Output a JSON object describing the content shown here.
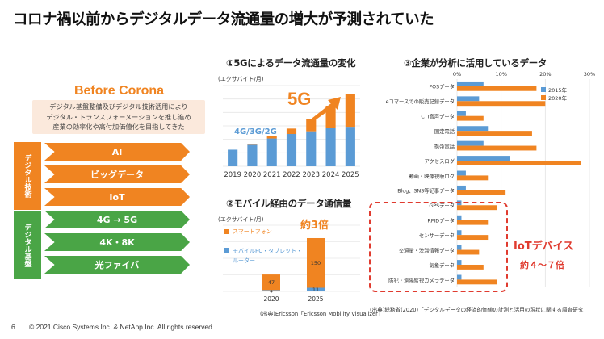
{
  "title": "コロナ禍以前からデジタルデータ流通量の増大が予測されていた",
  "left": {
    "heading": "Before Corona",
    "description": [
      "デジタル基盤整備及びデジタル技術活用により",
      "デジタル・トランスフォーメーションを推し進め",
      "産業の効率化や高付加価値化を目指してきた"
    ],
    "groups": [
      {
        "label": "デジタル技術",
        "color": "#f08421",
        "items": [
          "AI",
          "ビッグデータ",
          "IoT"
        ]
      },
      {
        "label": "デジタル基盤",
        "color": "#4aa546",
        "items": [
          "4G → 5G",
          "4K・8K",
          "光ファイバ"
        ]
      }
    ]
  },
  "chart1": {
    "heading": "①5Gによるデータ流通量の変化",
    "unit": "(エクサバイト/月)",
    "label_4g": "4G/3G/2G",
    "label_5g": "5G"
  },
  "chart2": {
    "heading": "②モバイル経由のデータ通信量",
    "unit": "(エクサバイト/月)",
    "legend": [
      "スマートフォン",
      "モバイルPC・タブレット・ルーター"
    ],
    "legend_lines": [
      "スマートフォン",
      "モバイルPC・タブレット・",
      "ルーター"
    ],
    "callout": "約3倍",
    "source": "(出典)Ericsson「Ericsson Mobility Visualizer」"
  },
  "chart3": {
    "heading": "③企業が分析に活用しているデータ",
    "iot_label": "IoTデバイス",
    "iot_sub": "約４～７倍",
    "source": "(出典)総務省(2020)「デジタルデータの経済的価値の計測と活用の現状に関する調査研究」"
  },
  "footer": {
    "page": "6",
    "copyright": "© 2021 Cisco Systems Inc. & NetApp Inc. All rights reserved"
  },
  "chart_data": [
    {
      "type": "bar",
      "stacked": true,
      "title": "①5Gによるデータ流通量の変化",
      "ylabel": "(エクサバイト/月)",
      "categories": [
        "2019",
        "2020",
        "2021",
        "2022",
        "2023",
        "2024",
        "2025"
      ],
      "series": [
        {
          "name": "4G/3G/2G",
          "color": "#5b9bd5",
          "values": [
            37,
            48,
            62,
            72,
            78,
            85,
            88
          ]
        },
        {
          "name": "5G",
          "color": "#f08421",
          "values": [
            0,
            1,
            5,
            12,
            28,
            50,
            74
          ]
        }
      ],
      "ylim": [
        0,
        180
      ],
      "grid": true
    },
    {
      "type": "bar",
      "stacked": true,
      "title": "②モバイル経由のデータ通信量",
      "ylabel": "(エクサバイト/月)",
      "categories": [
        "2020",
        "2025"
      ],
      "series": [
        {
          "name": "モバイルPC・タブレット・ルーター",
          "color": "#5b9bd5",
          "values": [
            4,
            11
          ]
        },
        {
          "name": "スマートフォン",
          "color": "#f08421",
          "values": [
            47,
            150
          ]
        }
      ],
      "ylim": [
        0,
        200
      ],
      "grid": true,
      "legend": "top-left"
    },
    {
      "type": "bar",
      "orientation": "horizontal",
      "title": "③企業が分析に活用しているデータ",
      "x_ticks": [
        "0%",
        "10%",
        "20%",
        "30%"
      ],
      "xlim": [
        0,
        30
      ],
      "legend": "top-right",
      "categories": [
        "POSデータ",
        "eコマースでの販売記録データ",
        "CTI音声データ",
        "固定電話",
        "携帯電話",
        "アクセスログ",
        "動画・映像視聴ログ",
        "Blog、SNS等記事データ",
        "GPSデータ",
        "RFIDデータ",
        "センサーデータ",
        "交通量・渋滞情報データ",
        "気象データ",
        "防犯・遠隔監視カメラデータ"
      ],
      "series": [
        {
          "name": "2015年",
          "color": "#5b9bd5",
          "values": [
            6,
            5,
            2,
            7,
            6,
            12,
            2,
            2,
            1,
            1,
            1,
            1,
            1,
            1
          ]
        },
        {
          "name": "2020年",
          "color": "#f08421",
          "values": [
            18,
            20,
            6,
            17,
            18,
            28,
            7,
            11,
            9,
            7,
            7,
            5,
            6,
            9
          ]
        }
      ]
    }
  ]
}
